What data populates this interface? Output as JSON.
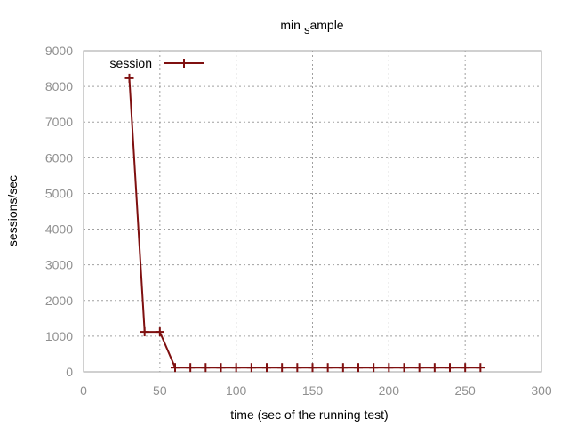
{
  "chart_data": {
    "type": "line",
    "title": "min",
    "title_subscript": "s",
    "title_suffix": "ample",
    "xlabel": "time (sec of the running test)",
    "ylabel": "sessions/sec",
    "xlim": [
      0,
      300
    ],
    "ylim": [
      0,
      9000
    ],
    "xticks": [
      0,
      50,
      100,
      150,
      200,
      250,
      300
    ],
    "yticks": [
      0,
      1000,
      2000,
      3000,
      4000,
      5000,
      6000,
      7000,
      8000,
      9000
    ],
    "grid": true,
    "legend_position": "top-left",
    "series": [
      {
        "name": "session",
        "color": "#7f1010",
        "marker": "plus",
        "x": [
          30,
          40,
          50,
          60,
          70,
          80,
          90,
          100,
          110,
          120,
          130,
          140,
          150,
          160,
          170,
          180,
          190,
          200,
          210,
          220,
          230,
          240,
          250,
          260
        ],
        "y": [
          8230,
          1120,
          1120,
          120,
          120,
          120,
          120,
          120,
          120,
          120,
          120,
          120,
          120,
          120,
          120,
          120,
          120,
          120,
          120,
          120,
          120,
          120,
          120,
          120
        ]
      }
    ]
  }
}
